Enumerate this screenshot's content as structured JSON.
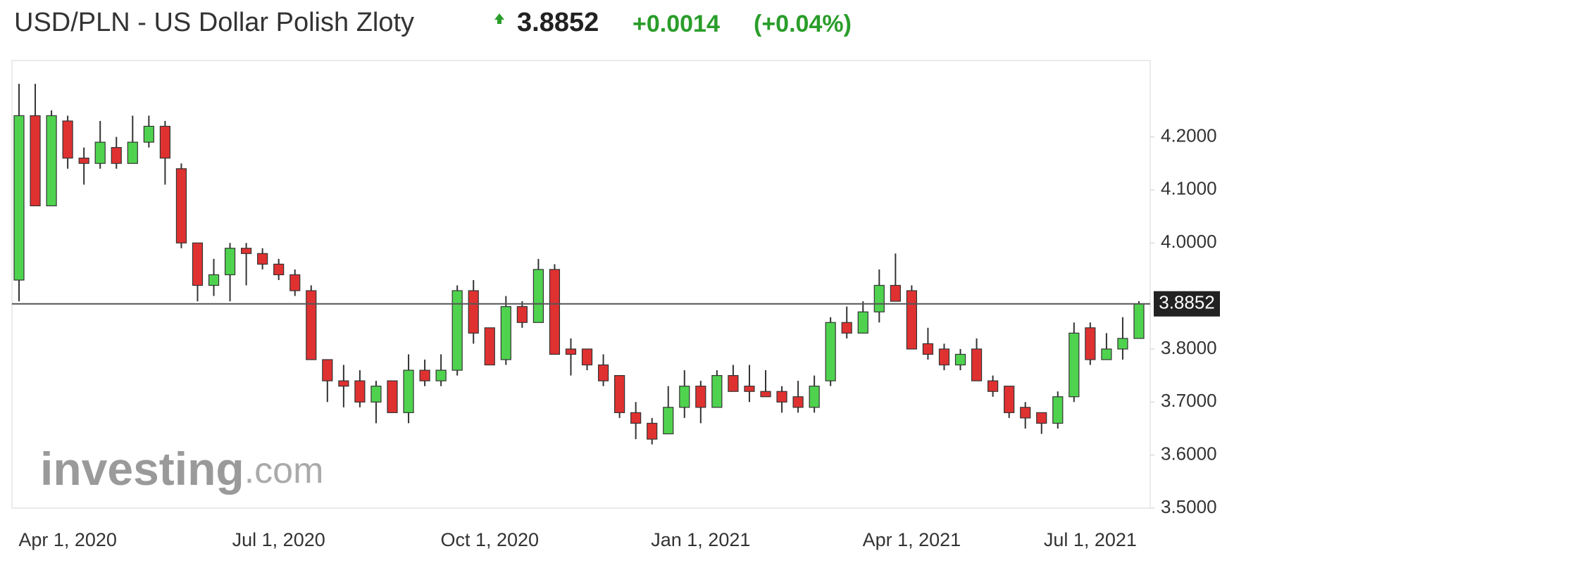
{
  "header": {
    "title": "USD/PLN - US Dollar Polish Zloty",
    "change": "+0.0014",
    "change_pct": "(+0.04%)"
  },
  "chart_data": {
    "type": "candlestick",
    "watermark": [
      "investing",
      ".com"
    ],
    "categories": [
      null,
      null,
      null,
      "Apr 1, 2020",
      null,
      null,
      null,
      null,
      null,
      null,
      null,
      null,
      null,
      null,
      null,
      null,
      "Jul 1, 2020",
      null,
      null,
      null,
      null,
      null,
      null,
      null,
      null,
      null,
      null,
      null,
      null,
      "Oct 1, 2020",
      null,
      null,
      null,
      null,
      null,
      null,
      null,
      null,
      null,
      null,
      null,
      null,
      "Jan 1, 2021",
      null,
      null,
      null,
      null,
      null,
      null,
      null,
      null,
      null,
      null,
      null,
      null,
      "Apr 1, 2021",
      null,
      null,
      null,
      null,
      null,
      null,
      null,
      null,
      null,
      null,
      "Jul 1, 2021",
      null,
      null,
      null
    ],
    "open": [
      3.93,
      4.24,
      4.07,
      4.23,
      4.16,
      4.15,
      4.18,
      4.15,
      4.19,
      4.22,
      4.14,
      4.0,
      3.92,
      3.94,
      3.99,
      3.98,
      3.96,
      3.94,
      3.91,
      3.78,
      3.74,
      3.74,
      3.7,
      3.74,
      3.68,
      3.76,
      3.74,
      3.76,
      3.91,
      3.84,
      3.78,
      3.88,
      3.85,
      3.95,
      3.8,
      3.8,
      3.77,
      3.75,
      3.68,
      3.66,
      3.64,
      3.69,
      3.73,
      3.69,
      3.75,
      3.73,
      3.72,
      3.72,
      3.71,
      3.69,
      3.74,
      3.85,
      3.83,
      3.87,
      3.92,
      3.91,
      3.81,
      3.8,
      3.77,
      3.8,
      3.74,
      3.73,
      3.69,
      3.68,
      3.66,
      3.71,
      3.84,
      3.78,
      3.8,
      3.82
    ],
    "high": [
      4.3,
      4.3,
      4.25,
      4.24,
      4.18,
      4.23,
      4.2,
      4.24,
      4.24,
      4.23,
      4.15,
      4.0,
      3.97,
      4.0,
      4.0,
      3.99,
      3.97,
      3.95,
      3.92,
      3.78,
      3.77,
      3.76,
      3.74,
      3.74,
      3.79,
      3.78,
      3.79,
      3.92,
      3.93,
      3.84,
      3.9,
      3.89,
      3.97,
      3.96,
      3.82,
      3.8,
      3.79,
      3.75,
      3.7,
      3.67,
      3.73,
      3.76,
      3.74,
      3.76,
      3.77,
      3.77,
      3.76,
      3.73,
      3.74,
      3.75,
      3.86,
      3.88,
      3.89,
      3.95,
      3.98,
      3.92,
      3.84,
      3.81,
      3.8,
      3.82,
      3.75,
      3.73,
      3.7,
      3.68,
      3.72,
      3.85,
      3.85,
      3.83,
      3.86,
      3.89
    ],
    "low": [
      3.89,
      4.07,
      4.07,
      4.14,
      4.11,
      4.14,
      4.14,
      4.15,
      4.18,
      4.11,
      3.99,
      3.89,
      3.9,
      3.89,
      3.92,
      3.95,
      3.93,
      3.9,
      3.78,
      3.7,
      3.69,
      3.69,
      3.66,
      3.68,
      3.66,
      3.73,
      3.73,
      3.75,
      3.81,
      3.77,
      3.77,
      3.84,
      3.85,
      3.79,
      3.75,
      3.76,
      3.73,
      3.67,
      3.63,
      3.62,
      3.64,
      3.67,
      3.66,
      3.69,
      3.72,
      3.7,
      3.71,
      3.68,
      3.68,
      3.68,
      3.73,
      3.82,
      3.83,
      3.85,
      3.89,
      3.8,
      3.78,
      3.76,
      3.76,
      3.74,
      3.71,
      3.67,
      3.65,
      3.64,
      3.65,
      3.7,
      3.77,
      3.78,
      3.78,
      3.82
    ],
    "close": [
      4.24,
      4.07,
      4.24,
      4.16,
      4.15,
      4.19,
      4.15,
      4.19,
      4.22,
      4.16,
      4.0,
      3.92,
      3.94,
      3.99,
      3.98,
      3.96,
      3.94,
      3.91,
      3.78,
      3.74,
      3.73,
      3.7,
      3.73,
      3.68,
      3.76,
      3.74,
      3.76,
      3.91,
      3.83,
      3.77,
      3.88,
      3.85,
      3.95,
      3.79,
      3.79,
      3.77,
      3.74,
      3.68,
      3.66,
      3.63,
      3.69,
      3.73,
      3.69,
      3.75,
      3.72,
      3.72,
      3.71,
      3.7,
      3.69,
      3.73,
      3.85,
      3.83,
      3.87,
      3.92,
      3.89,
      3.8,
      3.79,
      3.77,
      3.79,
      3.74,
      3.72,
      3.68,
      3.67,
      3.66,
      3.71,
      3.83,
      3.78,
      3.8,
      3.82,
      3.8852
    ],
    "up_color": "#4fd34f",
    "down_color": "#e03131",
    "last_price": 3.8852,
    "ylim": [
      3.5,
      4.344
    ],
    "yticks": [
      {
        "value": 3.5,
        "label": "3.5000"
      },
      {
        "value": 3.6,
        "label": "3.6000"
      },
      {
        "value": 3.7,
        "label": "3.7000"
      },
      {
        "value": 3.8,
        "label": "3.8000"
      },
      {
        "value": 4.0,
        "label": "4.0000"
      },
      {
        "value": 4.1,
        "label": "4.1000"
      },
      {
        "value": 4.2,
        "label": "4.2000"
      }
    ],
    "grid": false
  }
}
